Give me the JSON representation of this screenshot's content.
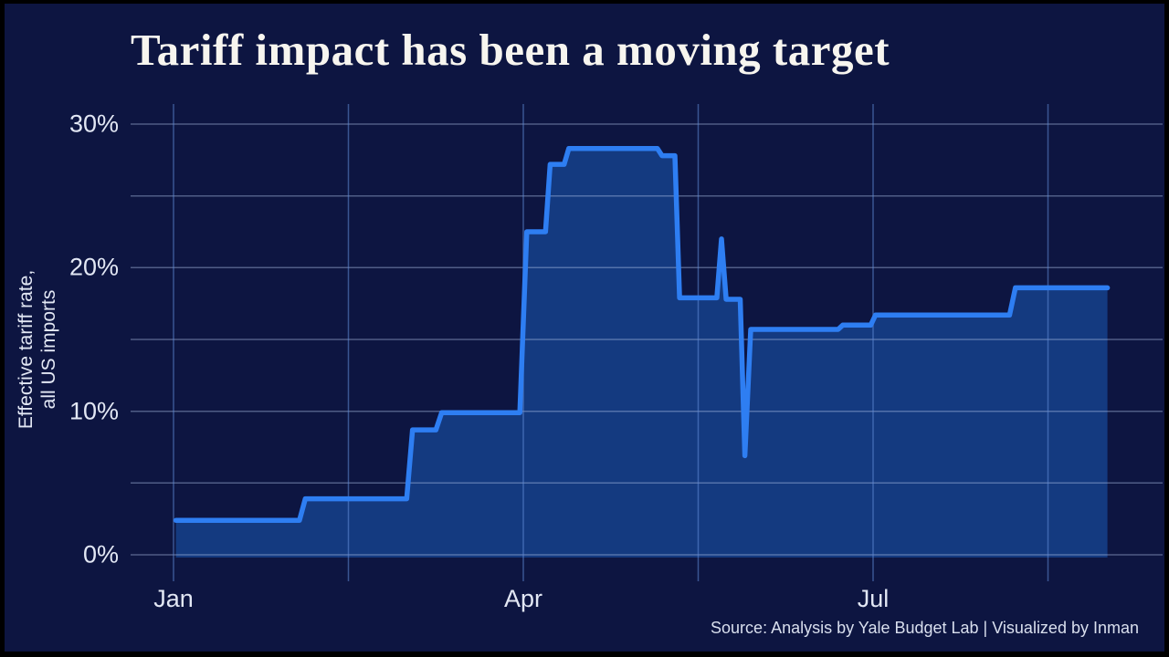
{
  "title": "Tariff impact has been a moving target",
  "y_axis_title": {
    "line1": "Effective tariff rate,",
    "line2": "all US imports"
  },
  "source": "Source: Analysis by Yale Budget Lab | Visualized by Inman",
  "colors": {
    "frame": "#000000",
    "background": "#0d1541",
    "line": "#2e7ef2",
    "area_fill": "#143a80",
    "grid_horizontal": "rgba(173,193,230,0.42)",
    "grid_vertical": "rgba(96,138,214,0.55)",
    "title_text": "#f7f5ef",
    "axis_text": "#e2e7f4",
    "source_text": "#d9dfee"
  },
  "chart_data": {
    "type": "area",
    "subtype": "step-line-with-fill",
    "title": "Tariff impact has been a moving target",
    "ylabel": "Effective tariff rate, all US imports",
    "series_name": "Effective tariff rate, all US imports",
    "x_unit": "months since Jan (0 = Jan, 3 = Apr, 6 = Jul)",
    "y_unit": "percent",
    "x_axis": {
      "range": [
        -0.37,
        8.48
      ],
      "gridlines": [
        0,
        1.5,
        3,
        4.5,
        6,
        7.5
      ],
      "ticks": [
        {
          "pos": 0,
          "label": "Jan"
        },
        {
          "pos": 3,
          "label": "Apr"
        },
        {
          "pos": 6,
          "label": "Jul"
        }
      ]
    },
    "y_axis": {
      "range": [
        -1.8,
        31.4
      ],
      "gridlines": [
        0,
        5,
        10,
        15,
        20,
        25,
        30
      ],
      "ticks": [
        {
          "pos": 0,
          "label": "0%"
        },
        {
          "pos": 10,
          "label": "10%"
        },
        {
          "pos": 20,
          "label": "20%"
        },
        {
          "pos": 30,
          "label": "30%"
        }
      ]
    },
    "grid": true,
    "legend": false,
    "points": [
      [
        0.02,
        2.4
      ],
      [
        1.08,
        2.4
      ],
      [
        1.13,
        3.9
      ],
      [
        2.0,
        3.9
      ],
      [
        2.05,
        8.7
      ],
      [
        2.25,
        8.7
      ],
      [
        2.3,
        9.9
      ],
      [
        2.97,
        9.9
      ],
      [
        3.03,
        22.5
      ],
      [
        3.19,
        22.5
      ],
      [
        3.23,
        27.2
      ],
      [
        3.35,
        27.2
      ],
      [
        3.39,
        28.3
      ],
      [
        4.15,
        28.3
      ],
      [
        4.19,
        27.8
      ],
      [
        4.3,
        27.8
      ],
      [
        4.34,
        17.9
      ],
      [
        4.66,
        17.9
      ],
      [
        4.7,
        22.0
      ],
      [
        4.74,
        17.8
      ],
      [
        4.86,
        17.8
      ],
      [
        4.9,
        6.9
      ],
      [
        4.95,
        15.7
      ],
      [
        5.7,
        15.7
      ],
      [
        5.74,
        16.0
      ],
      [
        5.98,
        16.0
      ],
      [
        6.02,
        16.7
      ],
      [
        7.17,
        16.7
      ],
      [
        7.22,
        18.6
      ],
      [
        8.01,
        18.6
      ]
    ]
  }
}
